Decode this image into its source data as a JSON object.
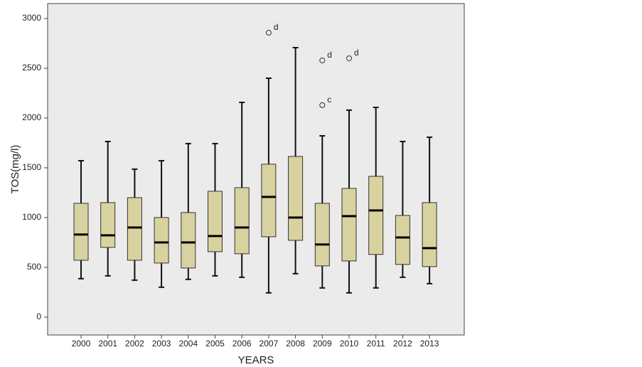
{
  "chart_data": {
    "type": "box",
    "x_label": "YEARS",
    "y_label": "TOS(mg/l)",
    "categories": [
      "2000",
      "2001",
      "2002",
      "2003",
      "2004",
      "2005",
      "2006",
      "2007",
      "2008",
      "2009",
      "2010",
      "2011",
      "2012",
      "2013"
    ],
    "whisker_low": [
      386,
      414,
      371,
      300,
      379,
      414,
      400,
      243,
      436,
      293,
      243,
      293,
      400,
      336
    ],
    "q1": [
      571,
      700,
      571,
      543,
      493,
      657,
      636,
      807,
      771,
      514,
      564,
      629,
      529,
      507
    ],
    "median": [
      829,
      821,
      900,
      750,
      750,
      814,
      900,
      1207,
      1000,
      729,
      1014,
      1071,
      800,
      693
    ],
    "q3": [
      1143,
      1150,
      1200,
      1000,
      1050,
      1264,
      1300,
      1536,
      1614,
      1143,
      1293,
      1414,
      1021,
      1150
    ],
    "whisker_high": [
      1571,
      1764,
      1486,
      1571,
      1743,
      1743,
      2157,
      2400,
      2707,
      1821,
      2079,
      2107,
      1764,
      1807
    ],
    "outliers": [
      {
        "x": "2007",
        "value": 2857,
        "label": "d"
      },
      {
        "x": "2009",
        "value": 2579,
        "label": "d"
      },
      {
        "x": "2009",
        "value": 2129,
        "label": "c"
      },
      {
        "x": "2010",
        "value": 2600,
        "label": "d"
      }
    ],
    "color": "#d8d2a0",
    "ylim": [
      -180,
      3150
    ],
    "yticks": [
      0,
      500,
      1000,
      1500,
      2000,
      2500,
      3000
    ]
  }
}
